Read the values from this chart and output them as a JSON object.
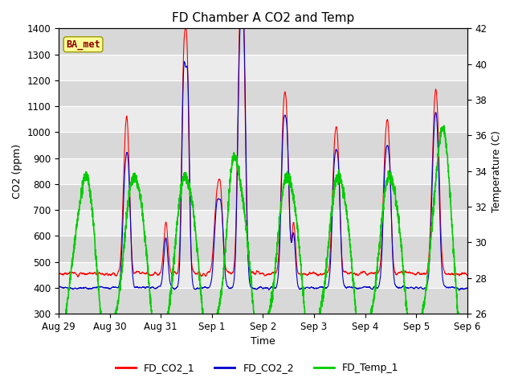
{
  "title": "FD Chamber A CO2 and Temp",
  "xlabel": "Time",
  "ylabel_left": "CO2 (ppm)",
  "ylabel_right": "Temperature (C)",
  "ylim_left": [
    300,
    1400
  ],
  "ylim_right": [
    26,
    42
  ],
  "yticks_left": [
    300,
    400,
    500,
    600,
    700,
    800,
    900,
    1000,
    1100,
    1200,
    1300,
    1400
  ],
  "yticks_right": [
    26,
    28,
    30,
    32,
    34,
    36,
    38,
    40,
    42
  ],
  "xtick_labels": [
    "Aug 29",
    "Aug 30",
    "Aug 31",
    "Sep 1",
    "Sep 2",
    "Sep 3",
    "Sep 4",
    "Sep 5",
    "Sep 6"
  ],
  "annotation_text": "BA_met",
  "annotation_color": "#8B0000",
  "annotation_bg": "#FFFF99",
  "annotation_edge": "#999900",
  "line_colors": {
    "FD_CO2_1": "#FF0000",
    "FD_CO2_2": "#0000CC",
    "FD_Temp_1": "#00CC00"
  },
  "line_widths": {
    "FD_CO2_1": 0.8,
    "FD_CO2_2": 0.8,
    "FD_Temp_1": 1.2
  },
  "background_color": "#FFFFFF",
  "plot_bg_dark": "#D8D8D8",
  "plot_bg_light": "#EBEBEB",
  "grid_color": "#FFFFFF",
  "title_fontsize": 11,
  "axis_fontsize": 9,
  "tick_fontsize": 8.5
}
